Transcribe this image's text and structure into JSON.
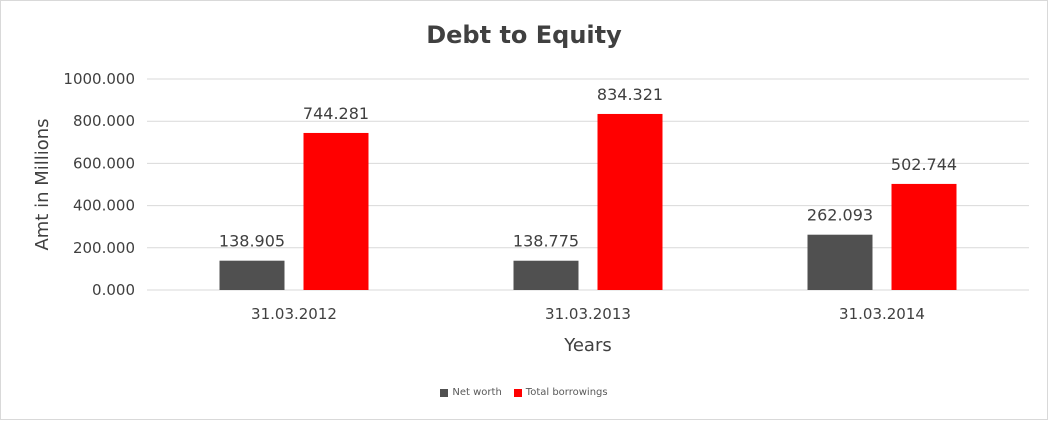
{
  "chart_data": {
    "type": "bar",
    "title": "Debt to Equity",
    "xlabel": "Years",
    "ylabel": "Amt in Millions",
    "categories": [
      "31.03.2012",
      "31.03.2013",
      "31.03.2014"
    ],
    "series": [
      {
        "name": "Net worth",
        "color": "#505050",
        "values": [
          138.905,
          138.775,
          262.093
        ],
        "labels": [
          "138.905",
          "138.775",
          "262.093"
        ]
      },
      {
        "name": "Total borrowings",
        "color": "#ff0000",
        "values": [
          744.281,
          834.321,
          502.744
        ],
        "labels": [
          "744.281",
          "834.321",
          "502.744"
        ]
      }
    ],
    "ylim": [
      0,
      1000
    ],
    "yticks": [
      0,
      200,
      400,
      600,
      800,
      1000
    ],
    "ytick_labels": [
      "0.000",
      "200.000",
      "400.000",
      "600.000",
      "800.000",
      "1000.000"
    ],
    "grid": true,
    "legend_position": "bottom"
  }
}
